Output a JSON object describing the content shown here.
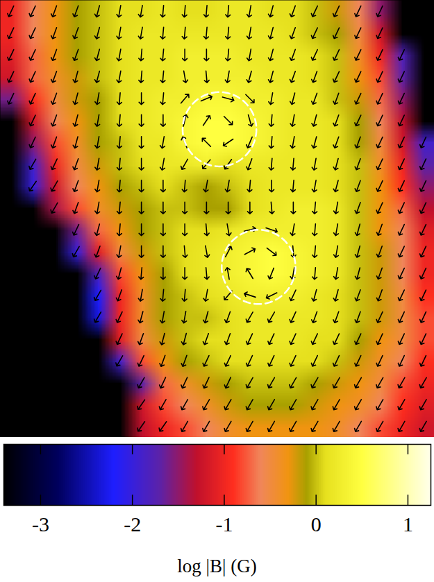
{
  "chart_data": {
    "type": "heatmap",
    "tick_labels": false,
    "xlim": [
      0,
      20
    ],
    "ylim": [
      0,
      20
    ],
    "cells": [
      [
        -1.0,
        -0.6,
        -0.3,
        -0.1,
        0.0,
        0.1,
        0.1,
        0.2,
        0.1,
        0.1,
        0.2,
        0.2,
        0.1,
        0.1,
        0.0,
        -0.2,
        -0.6,
        -1.5,
        null,
        null
      ],
      [
        -1.0,
        -0.6,
        -0.3,
        -0.1,
        0.0,
        0.1,
        0.2,
        0.2,
        0.2,
        0.2,
        0.2,
        0.2,
        0.2,
        0.1,
        0.0,
        -0.1,
        -0.5,
        -1.2,
        null,
        null
      ],
      [
        -1.1,
        -0.7,
        -0.3,
        -0.1,
        0.0,
        0.1,
        0.2,
        0.2,
        0.3,
        0.3,
        0.3,
        0.2,
        0.2,
        0.2,
        0.1,
        0.0,
        -0.4,
        -1.0,
        -1.8,
        null
      ],
      [
        -1.2,
        -0.7,
        -0.4,
        -0.2,
        0.0,
        0.1,
        0.2,
        0.2,
        0.3,
        0.3,
        0.3,
        0.3,
        0.2,
        0.2,
        0.1,
        0.0,
        -0.3,
        -0.8,
        -1.7,
        null
      ],
      [
        -1.6,
        -0.9,
        -0.5,
        -0.2,
        -0.1,
        0.1,
        0.2,
        0.3,
        0.3,
        0.4,
        0.4,
        0.3,
        0.3,
        0.2,
        0.2,
        0.0,
        -0.2,
        -0.7,
        -1.5,
        null
      ],
      [
        null,
        -1.2,
        -0.6,
        -0.3,
        -0.1,
        0.1,
        0.2,
        0.3,
        0.4,
        0.5,
        0.5,
        0.4,
        0.3,
        0.2,
        0.2,
        0.1,
        -0.1,
        -0.6,
        -1.3,
        null
      ],
      [
        null,
        -1.5,
        -0.8,
        -0.4,
        -0.1,
        0.0,
        0.2,
        0.2,
        0.4,
        0.5,
        0.5,
        0.4,
        0.3,
        0.2,
        0.2,
        0.1,
        -0.1,
        -0.5,
        -1.2,
        -1.9
      ],
      [
        null,
        -1.9,
        -1.0,
        -0.5,
        -0.2,
        0.0,
        0.1,
        0.2,
        0.2,
        0.3,
        0.1,
        0.2,
        0.2,
        0.2,
        0.2,
        0.1,
        0.0,
        -0.4,
        -1.0,
        -1.7
      ],
      [
        null,
        -2.0,
        -1.2,
        -0.6,
        -0.3,
        -0.1,
        0.0,
        0.1,
        0.0,
        -0.1,
        0.0,
        0.1,
        0.2,
        0.2,
        0.2,
        0.1,
        0.0,
        -0.3,
        -0.9,
        -1.5
      ],
      [
        null,
        null,
        -1.4,
        -0.8,
        -0.4,
        -0.2,
        -0.1,
        0.0,
        0.0,
        -0.1,
        -0.1,
        0.1,
        0.2,
        0.3,
        0.3,
        0.2,
        0.0,
        -0.3,
        -0.7,
        -1.3
      ],
      [
        null,
        null,
        null,
        -1.6,
        -0.7,
        -0.3,
        -0.1,
        0.0,
        0.1,
        0.1,
        0.2,
        0.3,
        0.3,
        0.3,
        0.3,
        0.2,
        0.0,
        -0.3,
        -0.6,
        -1.1
      ],
      [
        null,
        null,
        null,
        -2.0,
        -1.1,
        -0.5,
        -0.2,
        0.0,
        0.1,
        0.2,
        0.3,
        0.4,
        0.5,
        0.4,
        0.3,
        0.2,
        0.0,
        -0.2,
        -0.6,
        -1.0
      ],
      [
        null,
        null,
        null,
        null,
        -1.8,
        -0.8,
        -0.3,
        -0.1,
        0.1,
        0.2,
        0.3,
        0.4,
        0.5,
        0.4,
        0.3,
        0.2,
        0.0,
        -0.2,
        -0.6,
        -1.0
      ],
      [
        null,
        null,
        null,
        null,
        -2.2,
        -1.0,
        -0.4,
        -0.1,
        0.0,
        0.1,
        0.2,
        0.3,
        0.3,
        0.3,
        0.2,
        0.1,
        0.0,
        -0.2,
        -0.5,
        -0.9
      ],
      [
        null,
        null,
        null,
        null,
        -2.3,
        -1.0,
        -0.4,
        -0.1,
        0.0,
        0.0,
        0.1,
        0.2,
        0.2,
        0.2,
        0.2,
        0.1,
        0.0,
        -0.2,
        -0.5,
        -0.8
      ],
      [
        null,
        null,
        null,
        null,
        null,
        -1.1,
        -0.5,
        -0.2,
        0.0,
        0.1,
        0.1,
        0.2,
        0.2,
        0.2,
        0.1,
        0.1,
        -0.1,
        -0.3,
        -0.5,
        -0.8
      ],
      [
        null,
        null,
        null,
        null,
        null,
        -1.9,
        -0.8,
        -0.3,
        -0.1,
        0.0,
        0.1,
        0.1,
        0.1,
        0.1,
        0.1,
        0.0,
        -0.2,
        -0.4,
        -0.6,
        -0.9
      ],
      [
        null,
        null,
        null,
        null,
        null,
        null,
        -1.7,
        -0.7,
        -0.4,
        -0.2,
        -0.1,
        0.0,
        0.0,
        0.0,
        -0.1,
        -0.2,
        -0.3,
        -0.5,
        -0.8,
        -1.0
      ],
      [
        null,
        null,
        null,
        null,
        null,
        null,
        -1.2,
        -0.8,
        -0.6,
        -0.4,
        -0.2,
        -0.1,
        -0.1,
        -0.1,
        -0.2,
        -0.3,
        -0.4,
        -0.6,
        -0.9,
        -1.1
      ],
      [
        null,
        null,
        null,
        null,
        null,
        null,
        -1.3,
        -1.0,
        -0.8,
        -0.6,
        -0.4,
        -0.3,
        -0.3,
        -0.3,
        -0.3,
        -0.4,
        -0.6,
        -0.8,
        -1.0,
        -1.2
      ]
    ],
    "vector_angles": [
      [
        205,
        205,
        200,
        200,
        195,
        190,
        190,
        185,
        185,
        185,
        185,
        190,
        195,
        200,
        205,
        205,
        205,
        205,
        null,
        null
      ],
      [
        205,
        205,
        200,
        200,
        195,
        190,
        190,
        185,
        185,
        185,
        185,
        190,
        195,
        200,
        205,
        205,
        205,
        205,
        null,
        null
      ],
      [
        205,
        205,
        200,
        200,
        195,
        190,
        185,
        185,
        180,
        180,
        185,
        190,
        195,
        200,
        205,
        205,
        205,
        205,
        205,
        null
      ],
      [
        205,
        205,
        200,
        195,
        195,
        190,
        185,
        185,
        170,
        175,
        190,
        195,
        195,
        200,
        200,
        205,
        205,
        205,
        205,
        null
      ],
      [
        205,
        205,
        200,
        195,
        190,
        185,
        180,
        185,
        41,
        67,
        106,
        135,
        190,
        195,
        200,
        200,
        205,
        205,
        205,
        null
      ],
      [
        null,
        205,
        200,
        195,
        190,
        185,
        180,
        180,
        14,
        34,
        135,
        164,
        185,
        190,
        195,
        200,
        205,
        205,
        205,
        null
      ],
      [
        null,
        205,
        200,
        195,
        190,
        185,
        180,
        190,
        339,
        315,
        236,
        203,
        185,
        190,
        195,
        200,
        200,
        205,
        205,
        205
      ],
      [
        null,
        210,
        205,
        200,
        190,
        185,
        180,
        190,
        210,
        220,
        215,
        200,
        185,
        185,
        190,
        195,
        200,
        205,
        205,
        205
      ],
      [
        null,
        215,
        210,
        200,
        190,
        185,
        180,
        180,
        185,
        190,
        190,
        185,
        180,
        185,
        190,
        195,
        200,
        205,
        205,
        205
      ],
      [
        null,
        null,
        210,
        200,
        190,
        185,
        180,
        180,
        180,
        180,
        180,
        180,
        175,
        180,
        185,
        190,
        200,
        205,
        205,
        205
      ],
      [
        null,
        null,
        null,
        205,
        195,
        185,
        180,
        180,
        180,
        175,
        170,
        77,
        109,
        190,
        185,
        190,
        195,
        200,
        205,
        205
      ],
      [
        null,
        null,
        null,
        210,
        200,
        190,
        180,
        180,
        175,
        170,
        28,
        62,
        128,
        175,
        185,
        190,
        195,
        200,
        205,
        205
      ],
      [
        null,
        null,
        null,
        null,
        205,
        195,
        185,
        180,
        180,
        175,
        350,
        329,
        202,
        190,
        185,
        190,
        195,
        200,
        205,
        205
      ],
      [
        null,
        null,
        null,
        null,
        210,
        200,
        190,
        185,
        185,
        190,
        220,
        288,
        244,
        205,
        195,
        195,
        200,
        200,
        205,
        205
      ],
      [
        null,
        null,
        null,
        null,
        210,
        205,
        195,
        190,
        190,
        195,
        200,
        210,
        210,
        205,
        200,
        200,
        200,
        205,
        205,
        205
      ],
      [
        null,
        null,
        null,
        null,
        null,
        205,
        200,
        195,
        195,
        200,
        200,
        205,
        205,
        205,
        205,
        205,
        205,
        205,
        205,
        205
      ],
      [
        null,
        null,
        null,
        null,
        null,
        210,
        205,
        200,
        200,
        205,
        205,
        205,
        205,
        205,
        205,
        205,
        205,
        205,
        205,
        205
      ],
      [
        null,
        null,
        null,
        null,
        null,
        null,
        210,
        205,
        205,
        205,
        205,
        210,
        210,
        210,
        210,
        210,
        210,
        210,
        210,
        210
      ],
      [
        null,
        null,
        null,
        null,
        null,
        null,
        215,
        210,
        210,
        210,
        210,
        210,
        210,
        210,
        210,
        210,
        210,
        210,
        210,
        210
      ],
      [
        null,
        null,
        null,
        null,
        null,
        null,
        215,
        215,
        210,
        210,
        210,
        210,
        210,
        210,
        210,
        210,
        210,
        210,
        210,
        210
      ]
    ],
    "circles": [
      {
        "x": 10.1,
        "y": 5.9,
        "r": 1.7
      },
      {
        "x": 11.9,
        "y": 12.2,
        "r": 1.7
      }
    ],
    "colorbar": {
      "label": "log |B| (G)",
      "clim": [
        -3.4,
        1.25
      ],
      "ticks": [
        -3,
        -2,
        -1,
        0,
        1
      ]
    }
  }
}
